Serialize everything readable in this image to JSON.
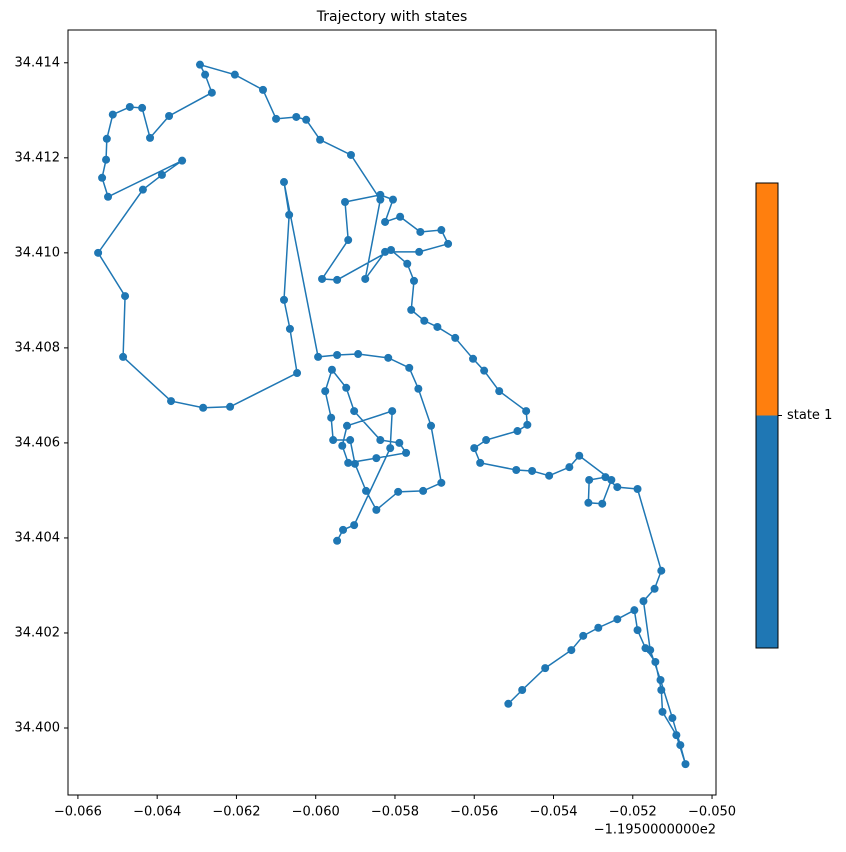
{
  "chart_data": {
    "type": "line",
    "title": "Trajectory with states",
    "x_offset_label": "−1.1950000000e2",
    "color": "#1f77b4",
    "markers": true,
    "xlim": [
      -0.06625,
      -0.0499
    ],
    "ylim": [
      34.39859,
      34.41469
    ],
    "xticks": [
      {
        "value": -0.066,
        "label": "−0.066"
      },
      {
        "value": -0.064,
        "label": "−0.064"
      },
      {
        "value": -0.062,
        "label": "−0.062"
      },
      {
        "value": -0.06,
        "label": "−0.060"
      },
      {
        "value": -0.058,
        "label": "−0.058"
      },
      {
        "value": -0.056,
        "label": "−0.056"
      },
      {
        "value": -0.054,
        "label": "−0.054"
      },
      {
        "value": -0.052,
        "label": "−0.052"
      },
      {
        "value": -0.05,
        "label": "−0.050"
      }
    ],
    "yticks": [
      {
        "value": 34.4,
        "label": "34.400"
      },
      {
        "value": 34.402,
        "label": "34.402"
      },
      {
        "value": 34.404,
        "label": "34.404"
      },
      {
        "value": 34.406,
        "label": "34.406"
      },
      {
        "value": 34.408,
        "label": "34.408"
      },
      {
        "value": 34.41,
        "label": "34.410"
      },
      {
        "value": 34.412,
        "label": "34.412"
      },
      {
        "value": 34.414,
        "label": "34.414"
      }
    ],
    "x": [
      -0.05514,
      -0.05479,
      -0.05421,
      -0.05355,
      -0.05325,
      -0.05287,
      -0.05239,
      -0.05196,
      -0.05188,
      -0.05168,
      -0.05143,
      -0.05128,
      -0.05125,
      -0.0509,
      -0.05067,
      -0.0508,
      -0.051,
      -0.0513,
      -0.05156,
      -0.05173,
      -0.05145,
      -0.05128,
      -0.05188,
      -0.05239,
      -0.05269,
      -0.0531,
      -0.05312,
      -0.05277,
      -0.05254,
      -0.05335,
      -0.0536,
      -0.05411,
      -0.05454,
      -0.05494,
      -0.05585,
      -0.056,
      -0.0557,
      -0.05491,
      -0.05466,
      -0.05469,
      -0.05537,
      -0.05575,
      -0.05603,
      -0.05648,
      -0.05693,
      -0.05726,
      -0.05759,
      -0.05752,
      -0.05769,
      -0.0581,
      -0.05946,
      -0.05984,
      -0.05918,
      -0.05926,
      -0.05837,
      -0.05805,
      -0.05825,
      -0.05787,
      -0.05736,
      -0.05683,
      -0.05666,
      -0.05739,
      -0.05825,
      -0.05875,
      -0.05837,
      -0.05911,
      -0.05989,
      -0.06024,
      -0.06049,
      -0.061,
      -0.06133,
      -0.06204,
      -0.06292,
      -0.06279,
      -0.06262,
      -0.0637,
      -0.06418,
      -0.06438,
      -0.06469,
      -0.06512,
      -0.06527,
      -0.06529,
      -0.06539,
      -0.06524,
      -0.06337,
      -0.06388,
      -0.06436,
      -0.06549,
      -0.06481,
      -0.06486,
      -0.06365,
      -0.06284,
      -0.06216,
      -0.06047,
      -0.06065,
      -0.0608,
      -0.06067,
      -0.0608,
      -0.05994,
      -0.05946,
      -0.05893,
      -0.05817,
      -0.05764,
      -0.05741,
      -0.05709,
      -0.05683,
      -0.05729,
      -0.05792,
      -0.05847,
      -0.05873,
      -0.05901,
      -0.05913,
      -0.05956,
      -0.05961,
      -0.05976,
      -0.05959,
      -0.05923,
      -0.05903,
      -0.05837,
      -0.05789,
      -0.05772,
      -0.05847,
      -0.05918,
      -0.05933,
      -0.05921,
      -0.05807,
      -0.05812,
      -0.05903,
      -0.05931,
      -0.05946
    ],
    "series": [
      {
        "name": "state 1",
        "color": "#1f77b4",
        "values": [
          34.40051,
          34.4008,
          34.40126,
          34.40164,
          34.40194,
          34.40211,
          34.40229,
          34.40248,
          34.40206,
          34.40168,
          34.40139,
          34.4008,
          34.40034,
          34.39985,
          34.39924,
          34.39964,
          34.40021,
          34.40101,
          34.40164,
          34.40267,
          34.40293,
          34.40331,
          34.40503,
          34.40507,
          34.40528,
          34.40522,
          34.40474,
          34.40472,
          34.40522,
          34.40573,
          34.40549,
          34.40531,
          34.40541,
          34.40543,
          34.40558,
          34.40589,
          34.40606,
          34.40625,
          34.40638,
          34.40667,
          34.40709,
          34.40752,
          34.40777,
          34.40821,
          34.40844,
          34.40857,
          34.4088,
          34.40941,
          34.40977,
          34.41006,
          34.40943,
          34.40945,
          34.41027,
          34.41107,
          34.41122,
          34.41112,
          34.41065,
          34.41076,
          34.41044,
          34.41048,
          34.41019,
          34.41002,
          34.41002,
          34.40945,
          34.41112,
          34.41206,
          34.41238,
          34.4128,
          34.41286,
          34.41282,
          34.41343,
          34.41375,
          34.41396,
          34.41375,
          34.41337,
          34.41288,
          34.41242,
          34.41305,
          34.41307,
          34.41291,
          34.4124,
          34.41196,
          34.41158,
          34.41118,
          34.41194,
          34.41164,
          34.41133,
          34.41,
          34.40909,
          34.40781,
          34.40688,
          34.40674,
          34.40676,
          34.40747,
          34.4084,
          34.40901,
          34.4108,
          34.41149,
          34.40781,
          34.40785,
          34.40787,
          34.40779,
          34.40758,
          34.40714,
          34.40636,
          34.40516,
          34.40499,
          34.40497,
          34.40459,
          34.40499,
          34.40556,
          34.40606,
          34.40606,
          34.40653,
          34.40709,
          34.40754,
          34.40716,
          34.40667,
          34.40606,
          34.406,
          34.40579,
          34.40568,
          34.40558,
          34.40594,
          34.40636,
          34.40667,
          34.40589,
          34.40427,
          34.40417,
          34.40394
        ]
      }
    ],
    "colorbar": {
      "colors": [
        "#1f77b4",
        "#ff7f0e"
      ],
      "tick_label": "state 1"
    }
  }
}
